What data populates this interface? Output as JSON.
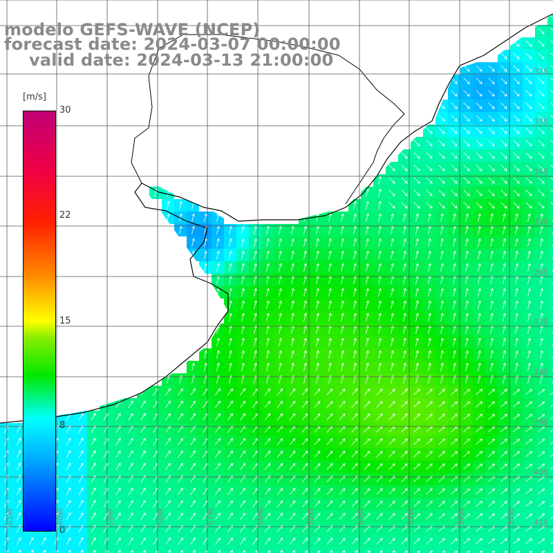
{
  "header": {
    "model": "modelo GEFS-WAVE (NCEP)",
    "forecast": "forecast date: 2024-03-07 00:00:00",
    "valid": "valid date: 2024-03-13 21:00:00"
  },
  "colorbar": {
    "units": "[m/s]",
    "ticks": [
      "30",
      "22",
      "15",
      "8",
      "0"
    ],
    "stops": [
      "#0000ff",
      "#00aaff",
      "#00ffff",
      "#00e800",
      "#88ee00",
      "#ffff00",
      "#ff8800",
      "#ff2200",
      "#ee0044",
      "#c00077"
    ]
  },
  "lat_labels": [
    "32S",
    "33S",
    "34S",
    "35S",
    "36S",
    "37S",
    "38S",
    "39S",
    "40S",
    "41S"
  ],
  "lon_labels": [
    "61W",
    "60W",
    "59W",
    "58W",
    "57W",
    "56W",
    "55W",
    "54W",
    "53W",
    "52W",
    "51W"
  ],
  "colors": {
    "land": "#ffffff",
    "coast": "#000000",
    "grid": "#555555",
    "arrow": "#ffffff",
    "label": "#8a8a8a"
  }
}
